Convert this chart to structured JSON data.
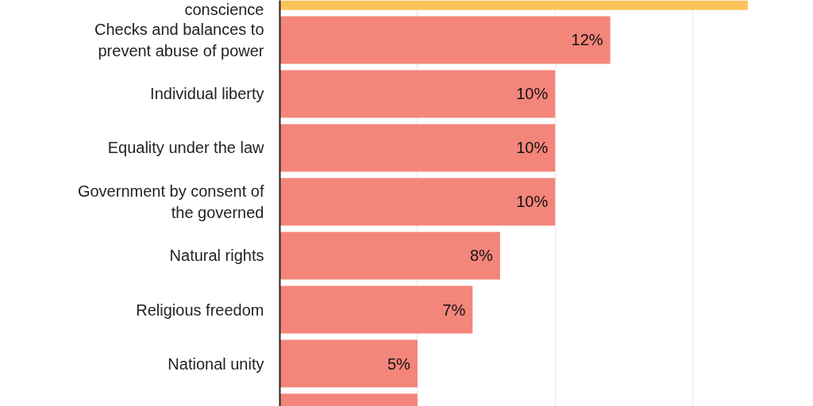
{
  "chart_data": {
    "type": "bar",
    "orientation": "horizontal",
    "categories": [
      "conscience",
      "Checks and balances to\nprevent abuse of power",
      "Individual liberty",
      "Equality under the law",
      "Government by consent of\nthe governed",
      "Natural rights",
      "Religious freedom",
      "National unity",
      null
    ],
    "values": [
      17,
      12,
      10,
      10,
      10,
      8,
      7,
      5,
      5
    ],
    "value_labels": [
      null,
      "12%",
      "10%",
      "10%",
      "10%",
      "8%",
      "7%",
      "5%",
      null
    ],
    "colors": [
      "#fcc25a",
      "#f4857a",
      "#f4857a",
      "#f4857a",
      "#f4857a",
      "#f4857a",
      "#f4857a",
      "#f4857a",
      "#f4857a"
    ],
    "xticks": [
      {
        "value": 5,
        "label": null
      },
      {
        "value": 10,
        "label": null
      },
      {
        "value": 15,
        "label": null
      }
    ],
    "grid": "x"
  }
}
